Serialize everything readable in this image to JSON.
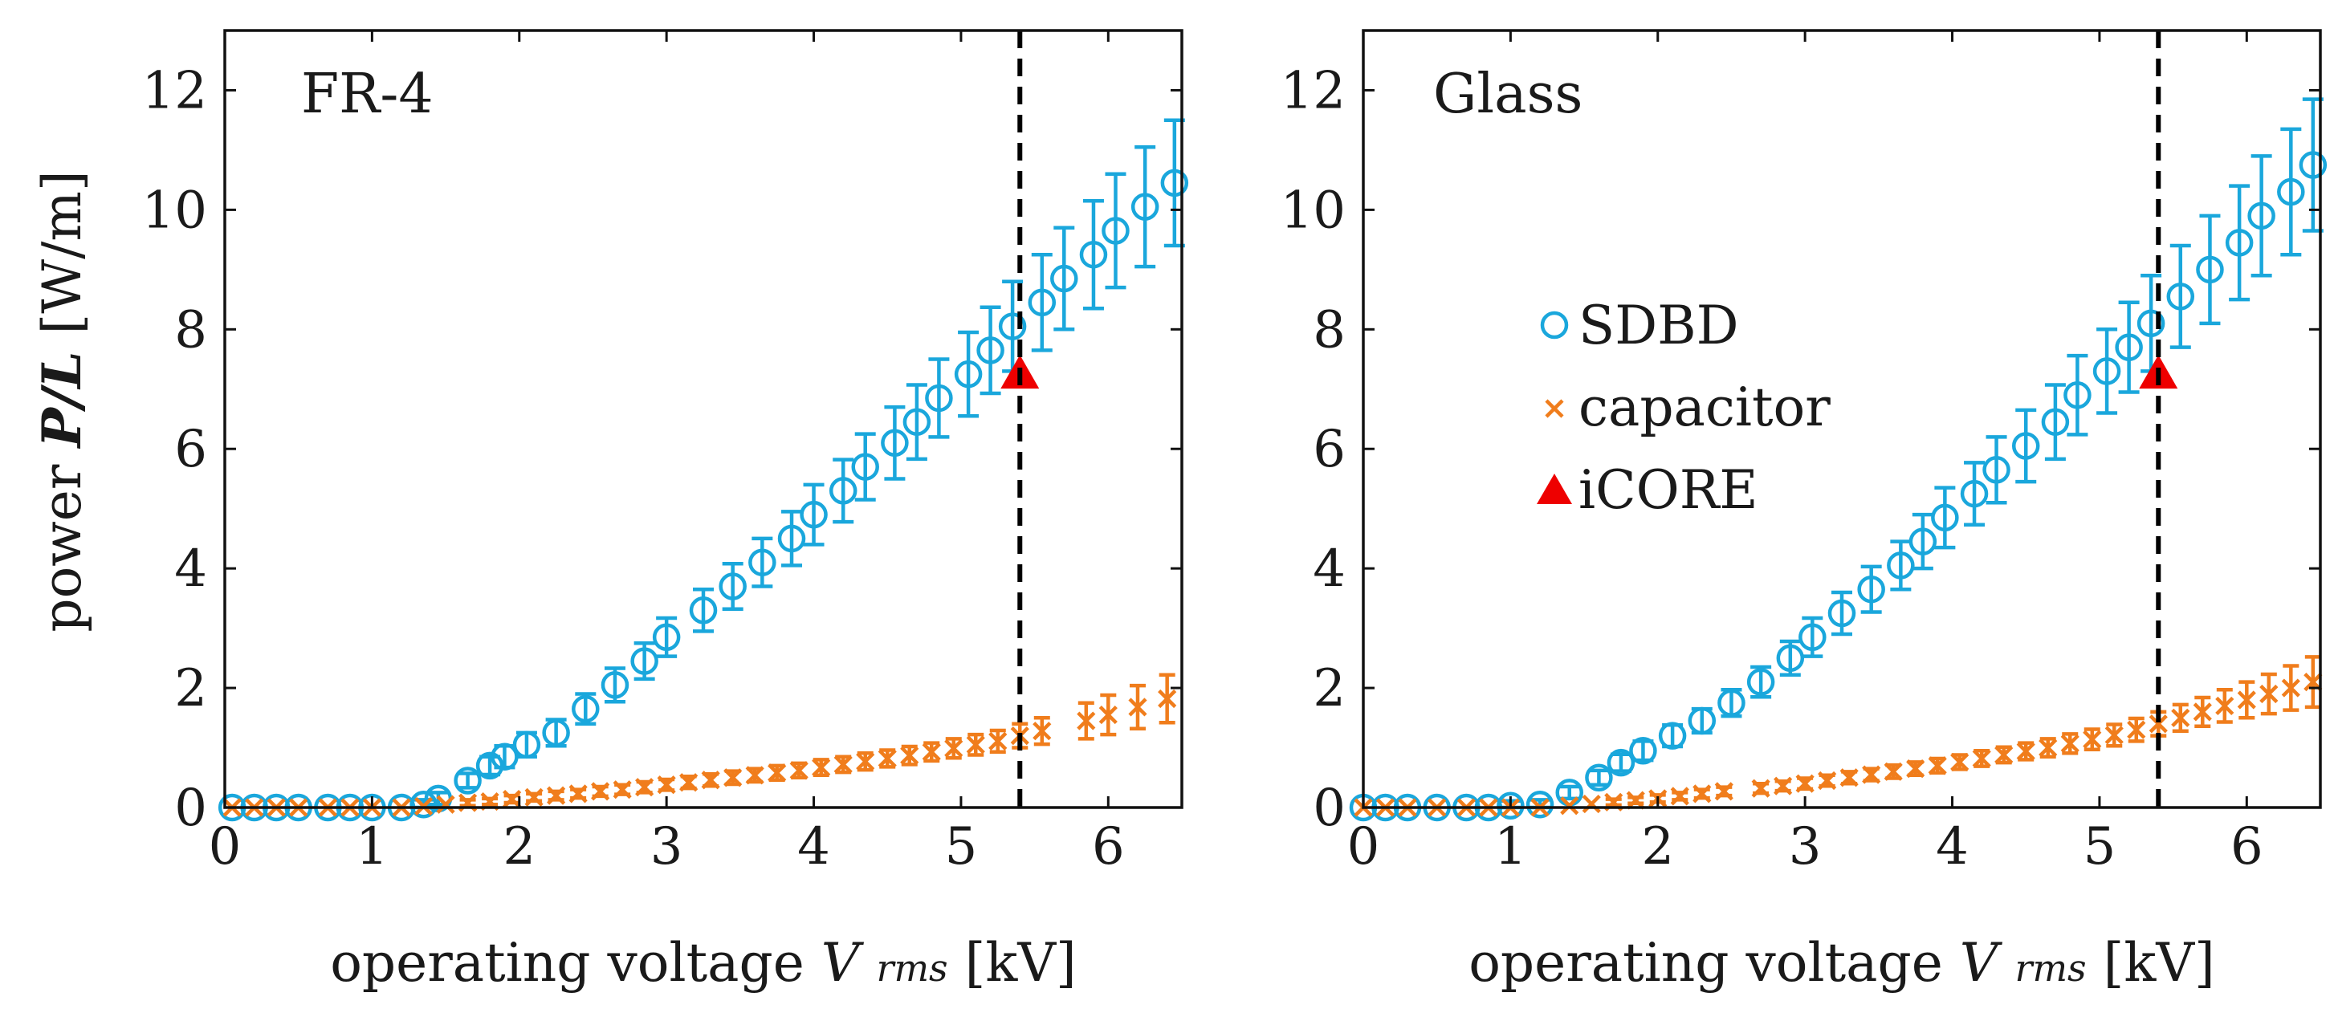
{
  "colors": {
    "sdbd": "#1aa7dc",
    "capacitor": "#f07d1c",
    "icore": "#ee0000",
    "axis": "#111111"
  },
  "chart_data": [
    {
      "type": "scatter",
      "panel_label": "FR-4",
      "xlabel": "operating voltage",
      "xlabel_var": "V",
      "xlabel_sub": "rms",
      "xlabel_unit": "[kV]",
      "ylabel": "power",
      "ylabel_var": "P/L",
      "ylabel_unit": "[W/m]",
      "xlim": [
        0,
        6.5
      ],
      "ylim": [
        0,
        13
      ],
      "xticks": [
        0,
        1,
        2,
        3,
        4,
        5,
        6
      ],
      "yticks": [
        0,
        2,
        4,
        6,
        8,
        10,
        12
      ],
      "vline_x": 5.4,
      "legend": null,
      "series": [
        {
          "name": "SDBD",
          "marker": "circle",
          "x": [
            0.05,
            0.2,
            0.35,
            0.5,
            0.7,
            0.85,
            1.0,
            1.2,
            1.35,
            1.45,
            1.65,
            1.8,
            1.9,
            2.05,
            2.25,
            2.45,
            2.65,
            2.85,
            3.0,
            3.25,
            3.45,
            3.65,
            3.85,
            4.0,
            4.2,
            4.35,
            4.55,
            4.7,
            4.85,
            5.05,
            5.2,
            5.35,
            5.55,
            5.7,
            5.9,
            6.05,
            6.25,
            6.45
          ],
          "y": [
            0,
            0,
            0,
            0,
            0,
            0,
            0,
            0,
            0.05,
            0.15,
            0.45,
            0.7,
            0.85,
            1.05,
            1.25,
            1.65,
            2.05,
            2.45,
            2.85,
            3.3,
            3.7,
            4.1,
            4.5,
            4.9,
            5.3,
            5.7,
            6.1,
            6.45,
            6.85,
            7.25,
            7.65,
            8.05,
            8.45,
            8.85,
            9.25,
            9.65,
            10.05,
            10.45
          ],
          "err": [
            0.08,
            0.08,
            0.08,
            0.08,
            0.08,
            0.08,
            0.08,
            0.08,
            0.08,
            0.1,
            0.12,
            0.15,
            0.18,
            0.2,
            0.22,
            0.25,
            0.28,
            0.3,
            0.32,
            0.35,
            0.38,
            0.4,
            0.45,
            0.5,
            0.52,
            0.55,
            0.6,
            0.62,
            0.65,
            0.7,
            0.72,
            0.75,
            0.8,
            0.85,
            0.9,
            0.95,
            1.0,
            1.05
          ]
        },
        {
          "name": "capacitor",
          "marker": "cross",
          "x": [
            0.05,
            0.2,
            0.35,
            0.5,
            0.7,
            0.85,
            1.0,
            1.2,
            1.35,
            1.5,
            1.65,
            1.8,
            1.95,
            2.1,
            2.25,
            2.4,
            2.55,
            2.7,
            2.85,
            3.0,
            3.15,
            3.3,
            3.45,
            3.6,
            3.75,
            3.9,
            4.05,
            4.2,
            4.35,
            4.5,
            4.65,
            4.8,
            4.95,
            5.1,
            5.25,
            5.4,
            5.55,
            5.85,
            6.0,
            6.2,
            6.4
          ],
          "y": [
            0,
            0,
            0,
            0,
            0,
            0,
            0,
            0,
            0.02,
            0.05,
            0.08,
            0.1,
            0.14,
            0.17,
            0.2,
            0.23,
            0.27,
            0.3,
            0.34,
            0.38,
            0.42,
            0.46,
            0.5,
            0.54,
            0.58,
            0.62,
            0.67,
            0.72,
            0.77,
            0.82,
            0.87,
            0.93,
            0.99,
            1.05,
            1.11,
            1.2,
            1.28,
            1.45,
            1.55,
            1.68,
            1.82
          ],
          "err": [
            0.03,
            0.03,
            0.03,
            0.03,
            0.03,
            0.03,
            0.03,
            0.03,
            0.04,
            0.04,
            0.05,
            0.05,
            0.06,
            0.06,
            0.07,
            0.07,
            0.08,
            0.08,
            0.09,
            0.09,
            0.1,
            0.1,
            0.11,
            0.11,
            0.12,
            0.12,
            0.13,
            0.13,
            0.14,
            0.14,
            0.15,
            0.15,
            0.16,
            0.17,
            0.18,
            0.2,
            0.22,
            0.3,
            0.33,
            0.36,
            0.4
          ]
        },
        {
          "name": "iCORE",
          "marker": "triangle",
          "x": [
            5.4
          ],
          "y": [
            7.25
          ]
        }
      ]
    },
    {
      "type": "scatter",
      "panel_label": "Glass",
      "xlabel": "operating voltage",
      "xlabel_var": "V",
      "xlabel_sub": "rms",
      "xlabel_unit": "[kV]",
      "xlim": [
        0,
        6.5
      ],
      "ylim": [
        0,
        13
      ],
      "xticks": [
        0,
        1,
        2,
        3,
        4,
        5,
        6
      ],
      "yticks": [
        0,
        2,
        4,
        6,
        8,
        10,
        12
      ],
      "vline_x": 5.4,
      "legend": {
        "placement": "center-left",
        "entries": [
          "SDBD",
          "capacitor",
          "iCORE"
        ]
      },
      "series": [
        {
          "name": "SDBD",
          "marker": "circle",
          "x": [
            0.0,
            0.15,
            0.3,
            0.5,
            0.7,
            0.85,
            1.0,
            1.2,
            1.4,
            1.6,
            1.75,
            1.9,
            2.1,
            2.3,
            2.5,
            2.7,
            2.9,
            3.05,
            3.25,
            3.45,
            3.65,
            3.8,
            3.95,
            4.15,
            4.3,
            4.5,
            4.7,
            4.85,
            5.05,
            5.2,
            5.35,
            5.55,
            5.75,
            5.95,
            6.1,
            6.3,
            6.45
          ],
          "y": [
            0,
            0,
            0,
            0,
            0,
            0,
            0.03,
            0.05,
            0.25,
            0.5,
            0.75,
            0.95,
            1.2,
            1.45,
            1.75,
            2.1,
            2.5,
            2.85,
            3.25,
            3.65,
            4.05,
            4.45,
            4.85,
            5.25,
            5.65,
            6.05,
            6.45,
            6.9,
            7.3,
            7.7,
            8.1,
            8.55,
            9.0,
            9.45,
            9.9,
            10.3,
            10.75
          ],
          "err": [
            0.08,
            0.08,
            0.08,
            0.08,
            0.08,
            0.08,
            0.08,
            0.08,
            0.1,
            0.12,
            0.14,
            0.16,
            0.18,
            0.2,
            0.22,
            0.25,
            0.28,
            0.32,
            0.35,
            0.38,
            0.4,
            0.45,
            0.5,
            0.52,
            0.55,
            0.6,
            0.62,
            0.66,
            0.7,
            0.75,
            0.8,
            0.85,
            0.9,
            0.95,
            1.0,
            1.05,
            1.1
          ]
        },
        {
          "name": "capacitor",
          "marker": "cross",
          "x": [
            0.0,
            0.15,
            0.3,
            0.5,
            0.7,
            0.85,
            1.0,
            1.2,
            1.4,
            1.55,
            1.7,
            1.85,
            2.0,
            2.15,
            2.3,
            2.45,
            2.7,
            2.85,
            3.0,
            3.15,
            3.3,
            3.45,
            3.6,
            3.75,
            3.9,
            4.05,
            4.2,
            4.35,
            4.5,
            4.65,
            4.8,
            4.95,
            5.1,
            5.25,
            5.4,
            5.55,
            5.7,
            5.85,
            6.0,
            6.15,
            6.3,
            6.45
          ],
          "y": [
            0,
            0,
            0,
            0,
            0,
            0,
            0,
            0,
            0.03,
            0.06,
            0.09,
            0.12,
            0.15,
            0.19,
            0.23,
            0.27,
            0.32,
            0.36,
            0.4,
            0.45,
            0.5,
            0.55,
            0.6,
            0.65,
            0.7,
            0.76,
            0.82,
            0.88,
            0.94,
            1.0,
            1.07,
            1.14,
            1.21,
            1.3,
            1.4,
            1.5,
            1.6,
            1.7,
            1.8,
            1.9,
            2.0,
            2.1
          ],
          "err": [
            0.03,
            0.03,
            0.03,
            0.03,
            0.03,
            0.03,
            0.03,
            0.03,
            0.04,
            0.04,
            0.05,
            0.05,
            0.06,
            0.06,
            0.07,
            0.07,
            0.08,
            0.08,
            0.09,
            0.09,
            0.1,
            0.1,
            0.11,
            0.11,
            0.12,
            0.12,
            0.13,
            0.13,
            0.14,
            0.15,
            0.16,
            0.17,
            0.18,
            0.19,
            0.2,
            0.22,
            0.24,
            0.27,
            0.3,
            0.33,
            0.37,
            0.42
          ]
        },
        {
          "name": "iCORE",
          "marker": "triangle",
          "x": [
            5.4
          ],
          "y": [
            7.25
          ]
        }
      ]
    }
  ]
}
